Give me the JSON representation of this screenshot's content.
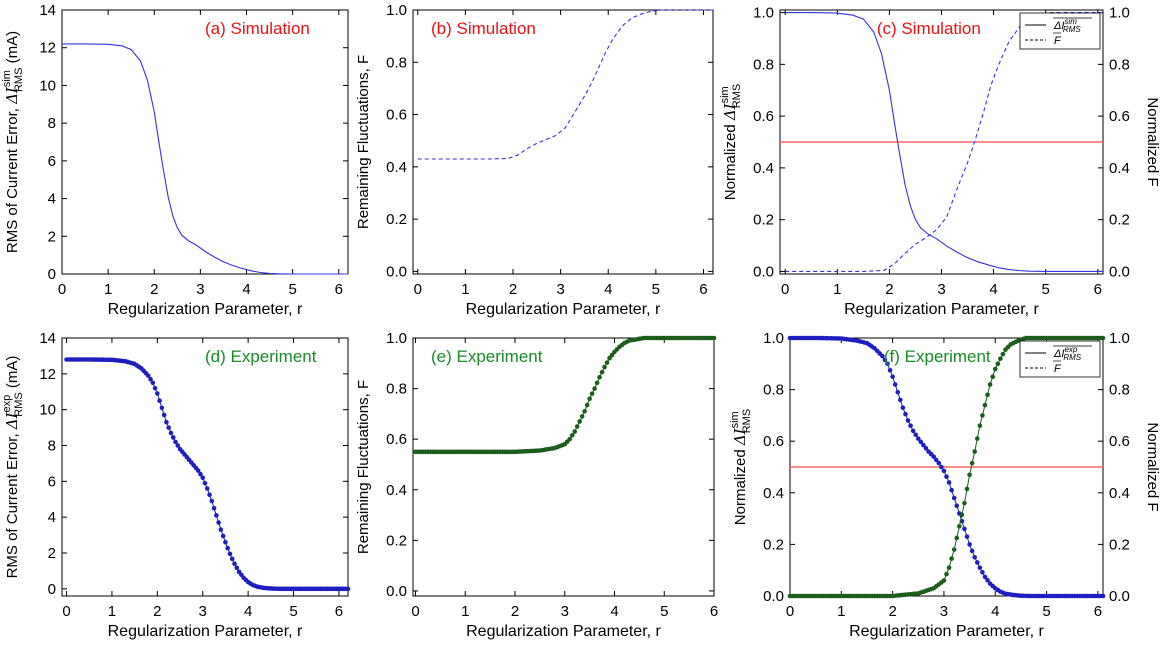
{
  "colors": {
    "simulation_title": "#ee1111",
    "experiment_title": "#1a8a2a",
    "curve_blue": "#3333dd",
    "marker_blue": "#1f1fbf",
    "marker_green": "#1a5e1a",
    "threshold_red": "#ff6666",
    "axis": "#000000"
  },
  "chart_data": [
    {
      "id": "a",
      "type": "line",
      "title": "(a) Simulation",
      "title_color": "#ee1111",
      "title_position": "top-right",
      "xlabel": "Regularization Parameter, r",
      "ylabel_prefix": "RMS of Current Error, ",
      "ylabel_symbol": "ΔI",
      "ylabel_sup": "sim",
      "ylabel_sub": "RMS",
      "ylabel_suffix": " (mA)",
      "xlim": [
        0,
        6.2
      ],
      "ylim": [
        0,
        14
      ],
      "xticks": [
        "0",
        "1",
        "2",
        "3",
        "4",
        "5",
        "6"
      ],
      "yticks": [
        "0",
        "2",
        "4",
        "6",
        "8",
        "10",
        "12",
        "14"
      ],
      "series": [
        {
          "style": "solid",
          "color": "#3333dd",
          "x": [
            0,
            0.5,
            1.0,
            1.3,
            1.5,
            1.7,
            1.85,
            2.0,
            2.1,
            2.2,
            2.3,
            2.4,
            2.5,
            2.6,
            2.75,
            2.9,
            3.1,
            3.3,
            3.5,
            3.7,
            3.9,
            4.1,
            4.3,
            4.5,
            4.7,
            5.0,
            5.5,
            6.2
          ],
          "y": [
            12.2,
            12.2,
            12.18,
            12.1,
            11.9,
            11.3,
            10.3,
            8.6,
            7.0,
            5.5,
            4.1,
            3.1,
            2.45,
            2.05,
            1.75,
            1.55,
            1.2,
            0.9,
            0.65,
            0.45,
            0.3,
            0.17,
            0.08,
            0.03,
            0.01,
            0,
            0,
            0
          ]
        }
      ]
    },
    {
      "id": "b",
      "type": "line",
      "title": "(b) Simulation",
      "title_color": "#ee1111",
      "title_position": "top-left",
      "xlabel": "Regularization Parameter, r",
      "ylabel_prefix": "Remaining Fluctuations, F",
      "xlim": [
        -0.1,
        6.2
      ],
      "ylim": [
        -0.01,
        1.0
      ],
      "xticks": [
        "0",
        "1",
        "2",
        "3",
        "4",
        "5",
        "6"
      ],
      "yticks": [
        "0.0",
        "0.2",
        "0.4",
        "0.6",
        "0.8",
        "1.0"
      ],
      "series": [
        {
          "style": "dashed",
          "color": "#3333dd",
          "x": [
            0,
            1.0,
            1.5,
            1.9,
            2.1,
            2.3,
            2.5,
            2.7,
            2.9,
            3.1,
            3.3,
            3.5,
            3.65,
            3.8,
            3.95,
            4.1,
            4.3,
            4.5,
            4.7,
            4.9,
            5.1,
            5.4,
            6.2
          ],
          "y": [
            0.43,
            0.43,
            0.43,
            0.432,
            0.445,
            0.47,
            0.49,
            0.505,
            0.52,
            0.55,
            0.61,
            0.67,
            0.72,
            0.78,
            0.84,
            0.89,
            0.94,
            0.97,
            0.985,
            0.995,
            1.0,
            1.0,
            1.0
          ]
        }
      ]
    },
    {
      "id": "c",
      "type": "line",
      "title": "(c) Simulation",
      "title_color": "#ee1111",
      "title_position": "top-right",
      "xlabel": "Regularization Parameter, r",
      "ylabel_prefix": "Normalized ",
      "ylabel_symbol": "ΔI",
      "ylabel_sup": "sim",
      "ylabel_sub": "RMS",
      "ylabel_right": "Normalized F",
      "xlim": [
        -0.1,
        6.1
      ],
      "ylim": [
        -0.01,
        1.01
      ],
      "xticks": [
        "0",
        "1",
        "2",
        "3",
        "4",
        "5",
        "6"
      ],
      "yticks": [
        "0.0",
        "0.2",
        "0.4",
        "0.6",
        "0.8",
        "1.0"
      ],
      "threshold": 0.5,
      "legend": {
        "position": "top-right",
        "entries": [
          {
            "style": "solid",
            "symbol": "ΔI",
            "sup": "sim",
            "sub": "RMS"
          },
          {
            "style": "dashed",
            "symbol": "F"
          }
        ]
      },
      "series": [
        {
          "style": "solid",
          "color": "#3333dd",
          "x": [
            0,
            0.5,
            1.0,
            1.3,
            1.5,
            1.7,
            1.85,
            2.0,
            2.1,
            2.2,
            2.3,
            2.4,
            2.5,
            2.6,
            2.75,
            2.9,
            3.1,
            3.3,
            3.5,
            3.7,
            3.9,
            4.1,
            4.3,
            4.5,
            4.7,
            5.0,
            5.5,
            6.1
          ],
          "y": [
            1.0,
            1.0,
            0.998,
            0.99,
            0.975,
            0.925,
            0.84,
            0.7,
            0.57,
            0.45,
            0.335,
            0.255,
            0.2,
            0.168,
            0.143,
            0.127,
            0.098,
            0.074,
            0.053,
            0.037,
            0.025,
            0.014,
            0.007,
            0.003,
            0.001,
            0,
            0,
            0
          ]
        },
        {
          "style": "dashed",
          "color": "#3333dd",
          "x": [
            0,
            1.0,
            1.5,
            1.9,
            2.1,
            2.3,
            2.5,
            2.7,
            2.9,
            3.1,
            3.3,
            3.5,
            3.65,
            3.8,
            3.95,
            4.1,
            4.3,
            4.5,
            4.7,
            4.9,
            5.1,
            5.4,
            6.1
          ],
          "y": [
            0,
            0,
            0,
            0.004,
            0.03,
            0.07,
            0.105,
            0.13,
            0.16,
            0.21,
            0.32,
            0.42,
            0.51,
            0.61,
            0.72,
            0.8,
            0.89,
            0.945,
            0.975,
            0.99,
            1.0,
            1.0,
            1.0
          ]
        }
      ]
    },
    {
      "id": "d",
      "type": "scatter",
      "title": "(d) Experiment",
      "title_color": "#1a8a2a",
      "title_position": "top-right",
      "xlabel": "Regularization Parameter, r",
      "ylabel_prefix": "RMS of Current Error, ",
      "ylabel_symbol": "ΔI",
      "ylabel_sup": "exp",
      "ylabel_sub": "RMS",
      "ylabel_suffix": " (mA)",
      "xlim": [
        -0.1,
        6.2
      ],
      "ylim": [
        -0.4,
        14
      ],
      "xticks": [
        "0",
        "1",
        "2",
        "3",
        "4",
        "5",
        "6"
      ],
      "yticks": [
        "0",
        "2",
        "4",
        "6",
        "8",
        "10",
        "12",
        "14"
      ],
      "series": [
        {
          "style": "markers",
          "color": "#1f1fbf",
          "x": [
            0,
            0.5,
            1.0,
            1.3,
            1.5,
            1.65,
            1.8,
            1.9,
            2.0,
            2.1,
            2.2,
            2.3,
            2.4,
            2.5,
            2.6,
            2.7,
            2.8,
            2.9,
            3.0,
            3.1,
            3.2,
            3.3,
            3.4,
            3.5,
            3.6,
            3.7,
            3.8,
            3.9,
            4.0,
            4.1,
            4.2,
            4.35,
            4.5,
            4.7,
            5.0,
            5.5,
            6.2
          ],
          "y": [
            12.8,
            12.8,
            12.78,
            12.7,
            12.55,
            12.3,
            11.9,
            11.5,
            10.9,
            10.1,
            9.3,
            8.7,
            8.2,
            7.8,
            7.5,
            7.2,
            6.9,
            6.6,
            6.2,
            5.6,
            4.9,
            4.1,
            3.3,
            2.6,
            1.95,
            1.4,
            0.95,
            0.62,
            0.38,
            0.22,
            0.12,
            0.05,
            0.02,
            0,
            0,
            0,
            0
          ]
        }
      ]
    },
    {
      "id": "e",
      "type": "scatter",
      "title": "(e) Experiment",
      "title_color": "#1a8a2a",
      "title_position": "top-left",
      "xlabel": "Regularization Parameter, r",
      "ylabel_prefix": "Remaining Fluctuations, F",
      "xlim": [
        -0.05,
        6
      ],
      "ylim": [
        -0.02,
        1.0
      ],
      "xticks": [
        "0",
        "1",
        "2",
        "3",
        "4",
        "5",
        "6"
      ],
      "yticks": [
        "0.0",
        "0.2",
        "0.4",
        "0.6",
        "0.8",
        "1.0"
      ],
      "series": [
        {
          "style": "markers",
          "color": "#1a5e1a",
          "x": [
            0,
            1.0,
            2.0,
            2.5,
            2.8,
            3.0,
            3.1,
            3.2,
            3.3,
            3.4,
            3.5,
            3.6,
            3.7,
            3.8,
            3.9,
            4.0,
            4.1,
            4.2,
            4.3,
            4.45,
            4.6,
            4.8,
            5.0,
            5.5,
            6.0
          ],
          "y": [
            0.55,
            0.55,
            0.55,
            0.555,
            0.565,
            0.58,
            0.6,
            0.63,
            0.67,
            0.71,
            0.76,
            0.8,
            0.845,
            0.885,
            0.92,
            0.945,
            0.965,
            0.98,
            0.99,
            0.995,
            1.0,
            1.0,
            1.0,
            1.0,
            1.0
          ]
        }
      ]
    },
    {
      "id": "f",
      "type": "scatter",
      "title": "(f) Experiment",
      "title_color": "#1a8a2a",
      "title_position": "top-right",
      "xlabel": "Regularization Parameter, r",
      "ylabel_prefix": "Normalized ",
      "ylabel_symbol": "ΔI",
      "ylabel_sup": "sim",
      "ylabel_sub": "RMS",
      "ylabel_right": "Normalized F",
      "xlim": [
        0,
        6.1
      ],
      "ylim": [
        0,
        1.0
      ],
      "xticks": [
        "0",
        "1",
        "2",
        "3",
        "4",
        "5",
        "6"
      ],
      "yticks": [
        "0.0",
        "0.2",
        "0.4",
        "0.6",
        "0.8",
        "1.0"
      ],
      "threshold": 0.5,
      "legend": {
        "position": "top-right",
        "entries": [
          {
            "style": "solid",
            "symbol": "ΔI",
            "sup": "exp",
            "sub": "RMS"
          },
          {
            "style": "dashed",
            "symbol": "F"
          }
        ]
      },
      "series": [
        {
          "style": "markers",
          "color": "#1f1fbf",
          "x": [
            0,
            0.5,
            1.0,
            1.3,
            1.5,
            1.65,
            1.8,
            1.9,
            2.0,
            2.1,
            2.2,
            2.3,
            2.4,
            2.5,
            2.6,
            2.7,
            2.8,
            2.9,
            3.0,
            3.1,
            3.2,
            3.3,
            3.4,
            3.5,
            3.6,
            3.7,
            3.8,
            3.9,
            4.0,
            4.1,
            4.2,
            4.35,
            4.5,
            4.7,
            5.0,
            5.5,
            6.1
          ],
          "y": [
            1.0,
            1.0,
            0.998,
            0.99,
            0.98,
            0.96,
            0.93,
            0.9,
            0.85,
            0.79,
            0.73,
            0.68,
            0.64,
            0.61,
            0.585,
            0.56,
            0.54,
            0.515,
            0.485,
            0.44,
            0.38,
            0.32,
            0.26,
            0.2,
            0.15,
            0.11,
            0.074,
            0.048,
            0.03,
            0.017,
            0.009,
            0.004,
            0.001,
            0,
            0,
            0,
            0
          ]
        },
        {
          "style": "markers",
          "color": "#1a5e1a",
          "x": [
            0,
            1.0,
            2.0,
            2.5,
            2.8,
            3.0,
            3.1,
            3.2,
            3.3,
            3.4,
            3.5,
            3.6,
            3.7,
            3.8,
            3.9,
            4.0,
            4.1,
            4.2,
            4.3,
            4.45,
            4.6,
            4.8,
            5.0,
            5.5,
            6.1
          ],
          "y": [
            0,
            0,
            0,
            0.01,
            0.03,
            0.06,
            0.11,
            0.18,
            0.27,
            0.36,
            0.47,
            0.56,
            0.66,
            0.74,
            0.82,
            0.88,
            0.92,
            0.955,
            0.975,
            0.99,
            1.0,
            1.0,
            1.0,
            1.0,
            1.0
          ]
        }
      ]
    }
  ]
}
